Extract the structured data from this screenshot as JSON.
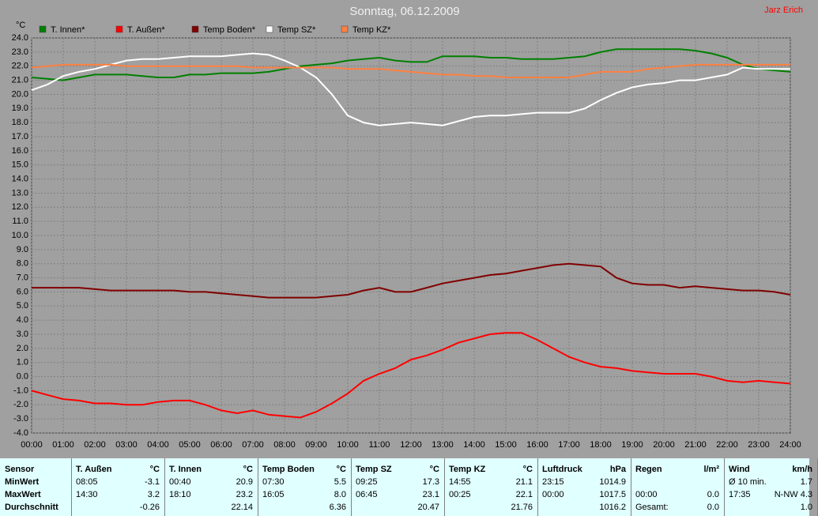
{
  "chart_data": {
    "type": "line",
    "title": "Sonntag, 06.12.2009",
    "author": "Jarz Erich",
    "y_label": "°C",
    "x": [
      0,
      0.5,
      1,
      1.5,
      2,
      2.5,
      3,
      3.5,
      4,
      4.5,
      5,
      5.5,
      6,
      6.5,
      7,
      7.5,
      8,
      8.5,
      9,
      9.5,
      10,
      10.5,
      11,
      11.5,
      12,
      12.5,
      13,
      13.5,
      14,
      14.5,
      15,
      15.5,
      16,
      16.5,
      17,
      17.5,
      18,
      18.5,
      19,
      19.5,
      20,
      20.5,
      21,
      21.5,
      22,
      22.5,
      23,
      23.5,
      24
    ],
    "series": [
      {
        "name": "T. Innen*",
        "color": "#008000",
        "values": [
          21.2,
          21.1,
          21.0,
          21.2,
          21.4,
          21.4,
          21.4,
          21.3,
          21.2,
          21.2,
          21.4,
          21.4,
          21.5,
          21.5,
          21.5,
          21.6,
          21.8,
          22.0,
          22.1,
          22.2,
          22.4,
          22.5,
          22.6,
          22.4,
          22.3,
          22.3,
          22.7,
          22.7,
          22.7,
          22.6,
          22.6,
          22.5,
          22.5,
          22.5,
          22.6,
          22.7,
          23.0,
          23.2,
          23.2,
          23.2,
          23.2,
          23.2,
          23.1,
          22.9,
          22.6,
          22.1,
          21.8,
          21.7,
          21.6
        ]
      },
      {
        "name": "T. Außen*",
        "color": "#ff0000",
        "values": [
          -1.0,
          -1.3,
          -1.6,
          -1.7,
          -1.9,
          -1.9,
          -2.0,
          -2.0,
          -1.8,
          -1.7,
          -1.7,
          -2.0,
          -2.4,
          -2.6,
          -2.4,
          -2.7,
          -2.8,
          -2.9,
          -2.5,
          -1.9,
          -1.2,
          -0.3,
          0.2,
          0.6,
          1.2,
          1.5,
          1.9,
          2.4,
          2.7,
          3.0,
          3.1,
          3.1,
          2.6,
          2.0,
          1.4,
          1.0,
          0.7,
          0.6,
          0.4,
          0.3,
          0.2,
          0.2,
          0.2,
          0.0,
          -0.3,
          -0.4,
          -0.3,
          -0.4,
          -0.5
        ]
      },
      {
        "name": "Temp Boden*",
        "color": "#800000",
        "values": [
          6.3,
          6.3,
          6.3,
          6.3,
          6.2,
          6.1,
          6.1,
          6.1,
          6.1,
          6.1,
          6.0,
          6.0,
          5.9,
          5.8,
          5.7,
          5.6,
          5.6,
          5.6,
          5.6,
          5.7,
          5.8,
          6.1,
          6.3,
          6.0,
          6.0,
          6.3,
          6.6,
          6.8,
          7.0,
          7.2,
          7.3,
          7.5,
          7.7,
          7.9,
          8.0,
          7.9,
          7.8,
          7.0,
          6.6,
          6.5,
          6.5,
          6.3,
          6.4,
          6.3,
          6.2,
          6.1,
          6.1,
          6.0,
          5.8
        ]
      },
      {
        "name": "Temp SZ*",
        "color": "#ffffff",
        "values": [
          20.3,
          20.7,
          21.3,
          21.6,
          21.8,
          22.1,
          22.4,
          22.5,
          22.5,
          22.6,
          22.7,
          22.7,
          22.7,
          22.8,
          22.9,
          22.8,
          22.4,
          21.9,
          21.2,
          20.0,
          18.5,
          18.0,
          17.8,
          17.9,
          18.0,
          17.9,
          17.8,
          18.1,
          18.4,
          18.5,
          18.5,
          18.6,
          18.7,
          18.7,
          18.7,
          19.0,
          19.6,
          20.1,
          20.5,
          20.7,
          20.8,
          21.0,
          21.0,
          21.2,
          21.4,
          21.9,
          21.8,
          21.8,
          21.8
        ]
      },
      {
        "name": "Temp KZ*",
        "color": "#ff8040",
        "values": [
          21.9,
          22.0,
          22.1,
          22.1,
          22.1,
          22.1,
          22.0,
          22.0,
          22.0,
          22.0,
          22.0,
          22.0,
          22.0,
          22.0,
          21.9,
          21.9,
          21.9,
          21.9,
          21.9,
          21.9,
          21.8,
          21.8,
          21.8,
          21.7,
          21.6,
          21.5,
          21.4,
          21.4,
          21.3,
          21.3,
          21.2,
          21.2,
          21.2,
          21.2,
          21.2,
          21.4,
          21.6,
          21.6,
          21.6,
          21.8,
          21.9,
          22.0,
          22.1,
          22.1,
          22.1,
          22.1,
          22.1,
          22.1,
          22.1
        ]
      }
    ],
    "xlim": [
      0,
      24
    ],
    "xticks": [
      {
        "value": 0,
        "label": "00:00"
      },
      {
        "value": 1,
        "label": "01:00"
      },
      {
        "value": 2,
        "label": "02:00"
      },
      {
        "value": 3,
        "label": "03:00"
      },
      {
        "value": 4,
        "label": "04:00"
      },
      {
        "value": 5,
        "label": "05:00"
      },
      {
        "value": 6,
        "label": "06:00"
      },
      {
        "value": 7,
        "label": "07:00"
      },
      {
        "value": 8,
        "label": "08:00"
      },
      {
        "value": 9,
        "label": "09:00"
      },
      {
        "value": 10,
        "label": "10:00"
      },
      {
        "value": 11,
        "label": "11:00"
      },
      {
        "value": 12,
        "label": "12:00"
      },
      {
        "value": 13,
        "label": "13:00"
      },
      {
        "value": 14,
        "label": "14:00"
      },
      {
        "value": 15,
        "label": "15:00"
      },
      {
        "value": 16,
        "label": "16:00"
      },
      {
        "value": 17,
        "label": "17:00"
      },
      {
        "value": 18,
        "label": "18:00"
      },
      {
        "value": 19,
        "label": "19:00"
      },
      {
        "value": 20,
        "label": "20:00"
      },
      {
        "value": 21,
        "label": "21:00"
      },
      {
        "value": 22,
        "label": "22:00"
      },
      {
        "value": 23,
        "label": "23:00"
      },
      {
        "value": 24,
        "label": "24:00"
      }
    ],
    "ylim": [
      -4,
      24
    ],
    "yticks": [
      {
        "value": -4,
        "label": "-4.0"
      },
      {
        "value": -3,
        "label": "-3.0"
      },
      {
        "value": -2,
        "label": "-2.0"
      },
      {
        "value": -1,
        "label": "-1.0"
      },
      {
        "value": 0,
        "label": "0.0"
      },
      {
        "value": 1,
        "label": "1.0"
      },
      {
        "value": 2,
        "label": "2.0"
      },
      {
        "value": 3,
        "label": "3.0"
      },
      {
        "value": 4,
        "label": "4.0"
      },
      {
        "value": 5,
        "label": "5.0"
      },
      {
        "value": 6,
        "label": "6.0"
      },
      {
        "value": 7,
        "label": "7.0"
      },
      {
        "value": 8,
        "label": "8.0"
      },
      {
        "value": 9,
        "label": "9.0"
      },
      {
        "value": 10,
        "label": "10.0"
      },
      {
        "value": 11,
        "label": "11.0"
      },
      {
        "value": 12,
        "label": "12.0"
      },
      {
        "value": 13,
        "label": "13.0"
      },
      {
        "value": 14,
        "label": "14.0"
      },
      {
        "value": 15,
        "label": "15.0"
      },
      {
        "value": 16,
        "label": "16.0"
      },
      {
        "value": 17,
        "label": "17.0"
      },
      {
        "value": 18,
        "label": "18.0"
      },
      {
        "value": 19,
        "label": "19.0"
      },
      {
        "value": 20,
        "label": "20.0"
      },
      {
        "value": 21,
        "label": "21.0"
      },
      {
        "value": 22,
        "label": "22.0"
      },
      {
        "value": 23,
        "label": "23.0"
      },
      {
        "value": 24,
        "label": "24.0"
      }
    ],
    "grid": true
  },
  "table": {
    "rows": [
      [
        "Sensor",
        "T. Außen",
        "°C",
        "T. Innen",
        "°C",
        "Temp Boden",
        "°C",
        "Temp SZ",
        "°C",
        "Temp KZ",
        "°C",
        "Luftdruck",
        "hPa",
        "Regen",
        "l/m²",
        "Wind",
        "km/h"
      ],
      [
        "MinWert",
        "08:05",
        "-3.1",
        "00:40",
        "20.9",
        "07:30",
        "5.5",
        "09:25",
        "17.3",
        "14:55",
        "21.1",
        "23:15",
        "1014.9",
        null,
        null,
        "Ø 10 min.",
        "1.7"
      ],
      [
        "MaxWert",
        "14:30",
        "3.2",
        "18:10",
        "23.2",
        "16:05",
        "8.0",
        "06:45",
        "23.1",
        "00:25",
        "22.1",
        "00:00",
        "1017.5",
        "00:00",
        "0.0",
        "17:35",
        "N-NW 4.3"
      ],
      [
        "Durchschnitt",
        null,
        "-0.26",
        null,
        "22.14",
        null,
        "6.36",
        null,
        "20.47",
        null,
        "21.76",
        null,
        "1016.2",
        "Gesamt:",
        "0.0",
        null,
        "1.0"
      ]
    ]
  }
}
